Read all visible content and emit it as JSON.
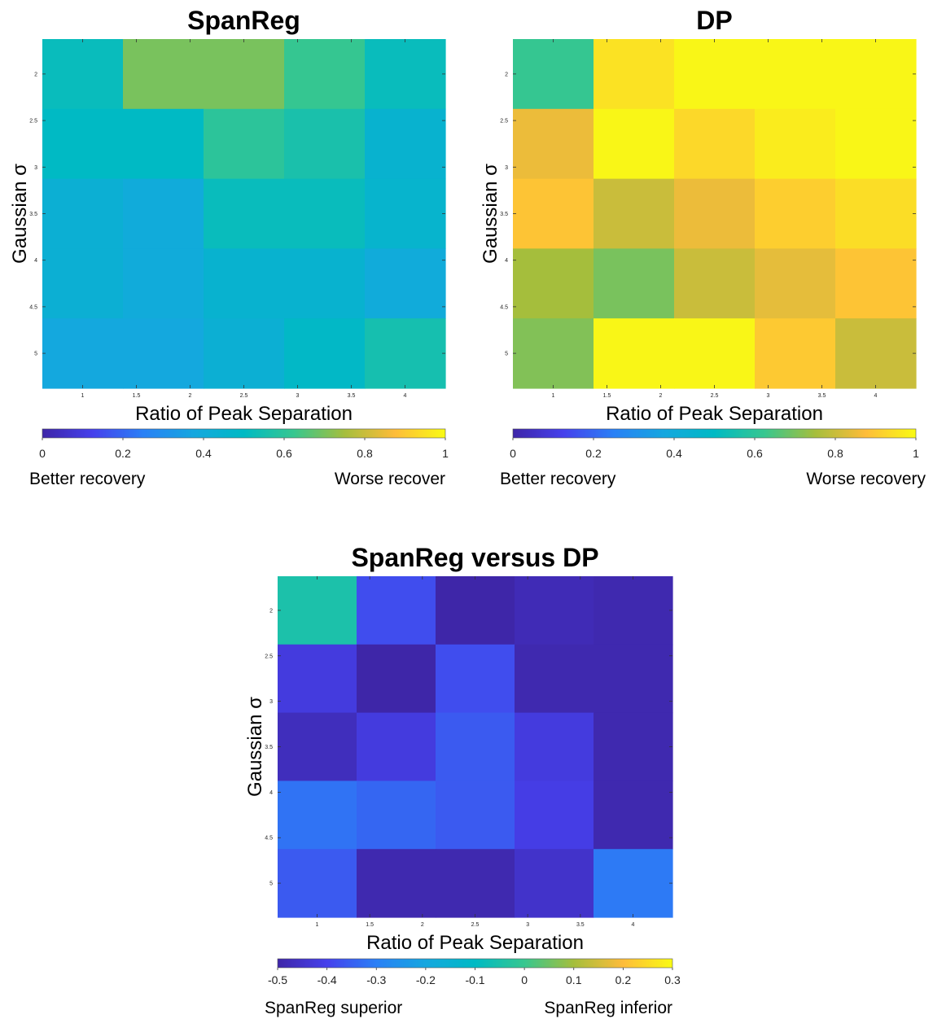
{
  "chart_data": [
    {
      "type": "heatmap",
      "title": "SpanReg",
      "xlabel": "Ratio of Peak Separation",
      "ylabel": "Gaussian σ",
      "x_ticks": [
        "1",
        "1.5",
        "2",
        "2.5",
        "3",
        "3.5",
        "4"
      ],
      "y_ticks": [
        "2",
        "2.5",
        "3",
        "3.5",
        "4",
        "4.5",
        "5"
      ],
      "xlim": [
        0.625,
        4.375
      ],
      "ylim": [
        1.625,
        5.375
      ],
      "x": [
        1,
        1.75,
        2.5,
        3.25,
        4
      ],
      "y": [
        2,
        2.75,
        3.5,
        4.25,
        5
      ],
      "values": [
        [
          0.52,
          0.7,
          0.7,
          0.62,
          0.52
        ],
        [
          0.5,
          0.5,
          0.6,
          0.56,
          0.45
        ],
        [
          0.43,
          0.4,
          0.52,
          0.52,
          0.46
        ],
        [
          0.43,
          0.4,
          0.45,
          0.45,
          0.4
        ],
        [
          0.38,
          0.38,
          0.43,
          0.49,
          0.55
        ]
      ],
      "colorbar": {
        "clim": [
          0,
          1
        ],
        "ticks": [
          "0",
          "0.2",
          "0.4",
          "0.6",
          "0.8",
          "1"
        ],
        "left_label": "Better recovery",
        "right_label": "Worse recover"
      }
    },
    {
      "type": "heatmap",
      "title": "DP",
      "xlabel": "Ratio of Peak Separation",
      "ylabel": "Gaussian σ",
      "x_ticks": [
        "1",
        "1.5",
        "2",
        "2.5",
        "3",
        "3.5",
        "4"
      ],
      "y_ticks": [
        "2",
        "2.5",
        "3",
        "3.5",
        "4",
        "4.5",
        "5"
      ],
      "xlim": [
        0.625,
        4.375
      ],
      "ylim": [
        1.625,
        5.375
      ],
      "x": [
        1,
        1.75,
        2.5,
        3.25,
        4
      ],
      "y": [
        2,
        2.75,
        3.5,
        4.25,
        5
      ],
      "values": [
        [
          0.62,
          0.95,
          0.99,
          0.99,
          0.99
        ],
        [
          0.85,
          0.99,
          0.93,
          0.97,
          0.99
        ],
        [
          0.89,
          0.8,
          0.85,
          0.91,
          0.94
        ],
        [
          0.75,
          0.7,
          0.8,
          0.84,
          0.89
        ],
        [
          0.71,
          0.99,
          0.99,
          0.9,
          0.8
        ]
      ],
      "colorbar": {
        "clim": [
          0,
          1
        ],
        "ticks": [
          "0",
          "0.2",
          "0.4",
          "0.6",
          "0.8",
          "1"
        ],
        "left_label": "Better recovery",
        "right_label": "Worse recovery"
      }
    },
    {
      "type": "heatmap",
      "title": "SpanReg versus DP",
      "xlabel": "Ratio of Peak Separation",
      "ylabel": "Gaussian σ",
      "x_ticks": [
        "1",
        "1.5",
        "2",
        "2.5",
        "3",
        "3.5",
        "4"
      ],
      "y_ticks": [
        "2",
        "2.5",
        "3",
        "3.5",
        "4",
        "4.5",
        "5"
      ],
      "xlim": [
        0.625,
        4.375
      ],
      "ylim": [
        1.625,
        5.375
      ],
      "x": [
        1,
        1.75,
        2.5,
        3.25,
        4
      ],
      "y": [
        2,
        2.75,
        3.5,
        4.25,
        5
      ],
      "values": [
        [
          -0.05,
          -0.38,
          -0.5,
          -0.48,
          -0.49
        ],
        [
          -0.42,
          -0.5,
          -0.38,
          -0.49,
          -0.49
        ],
        [
          -0.47,
          -0.42,
          -0.36,
          -0.42,
          -0.49
        ],
        [
          -0.32,
          -0.34,
          -0.36,
          -0.41,
          -0.49
        ],
        [
          -0.36,
          -0.49,
          -0.49,
          -0.45,
          -0.31
        ]
      ],
      "colorbar": {
        "clim": [
          -0.5,
          0.3
        ],
        "ticks": [
          "-0.5",
          "-0.4",
          "-0.3",
          "-0.2",
          "-0.1",
          "0",
          "0.1",
          "0.2",
          "0.3"
        ],
        "left_label": "SpanReg superior",
        "right_label": "SpanReg inferior"
      }
    }
  ]
}
